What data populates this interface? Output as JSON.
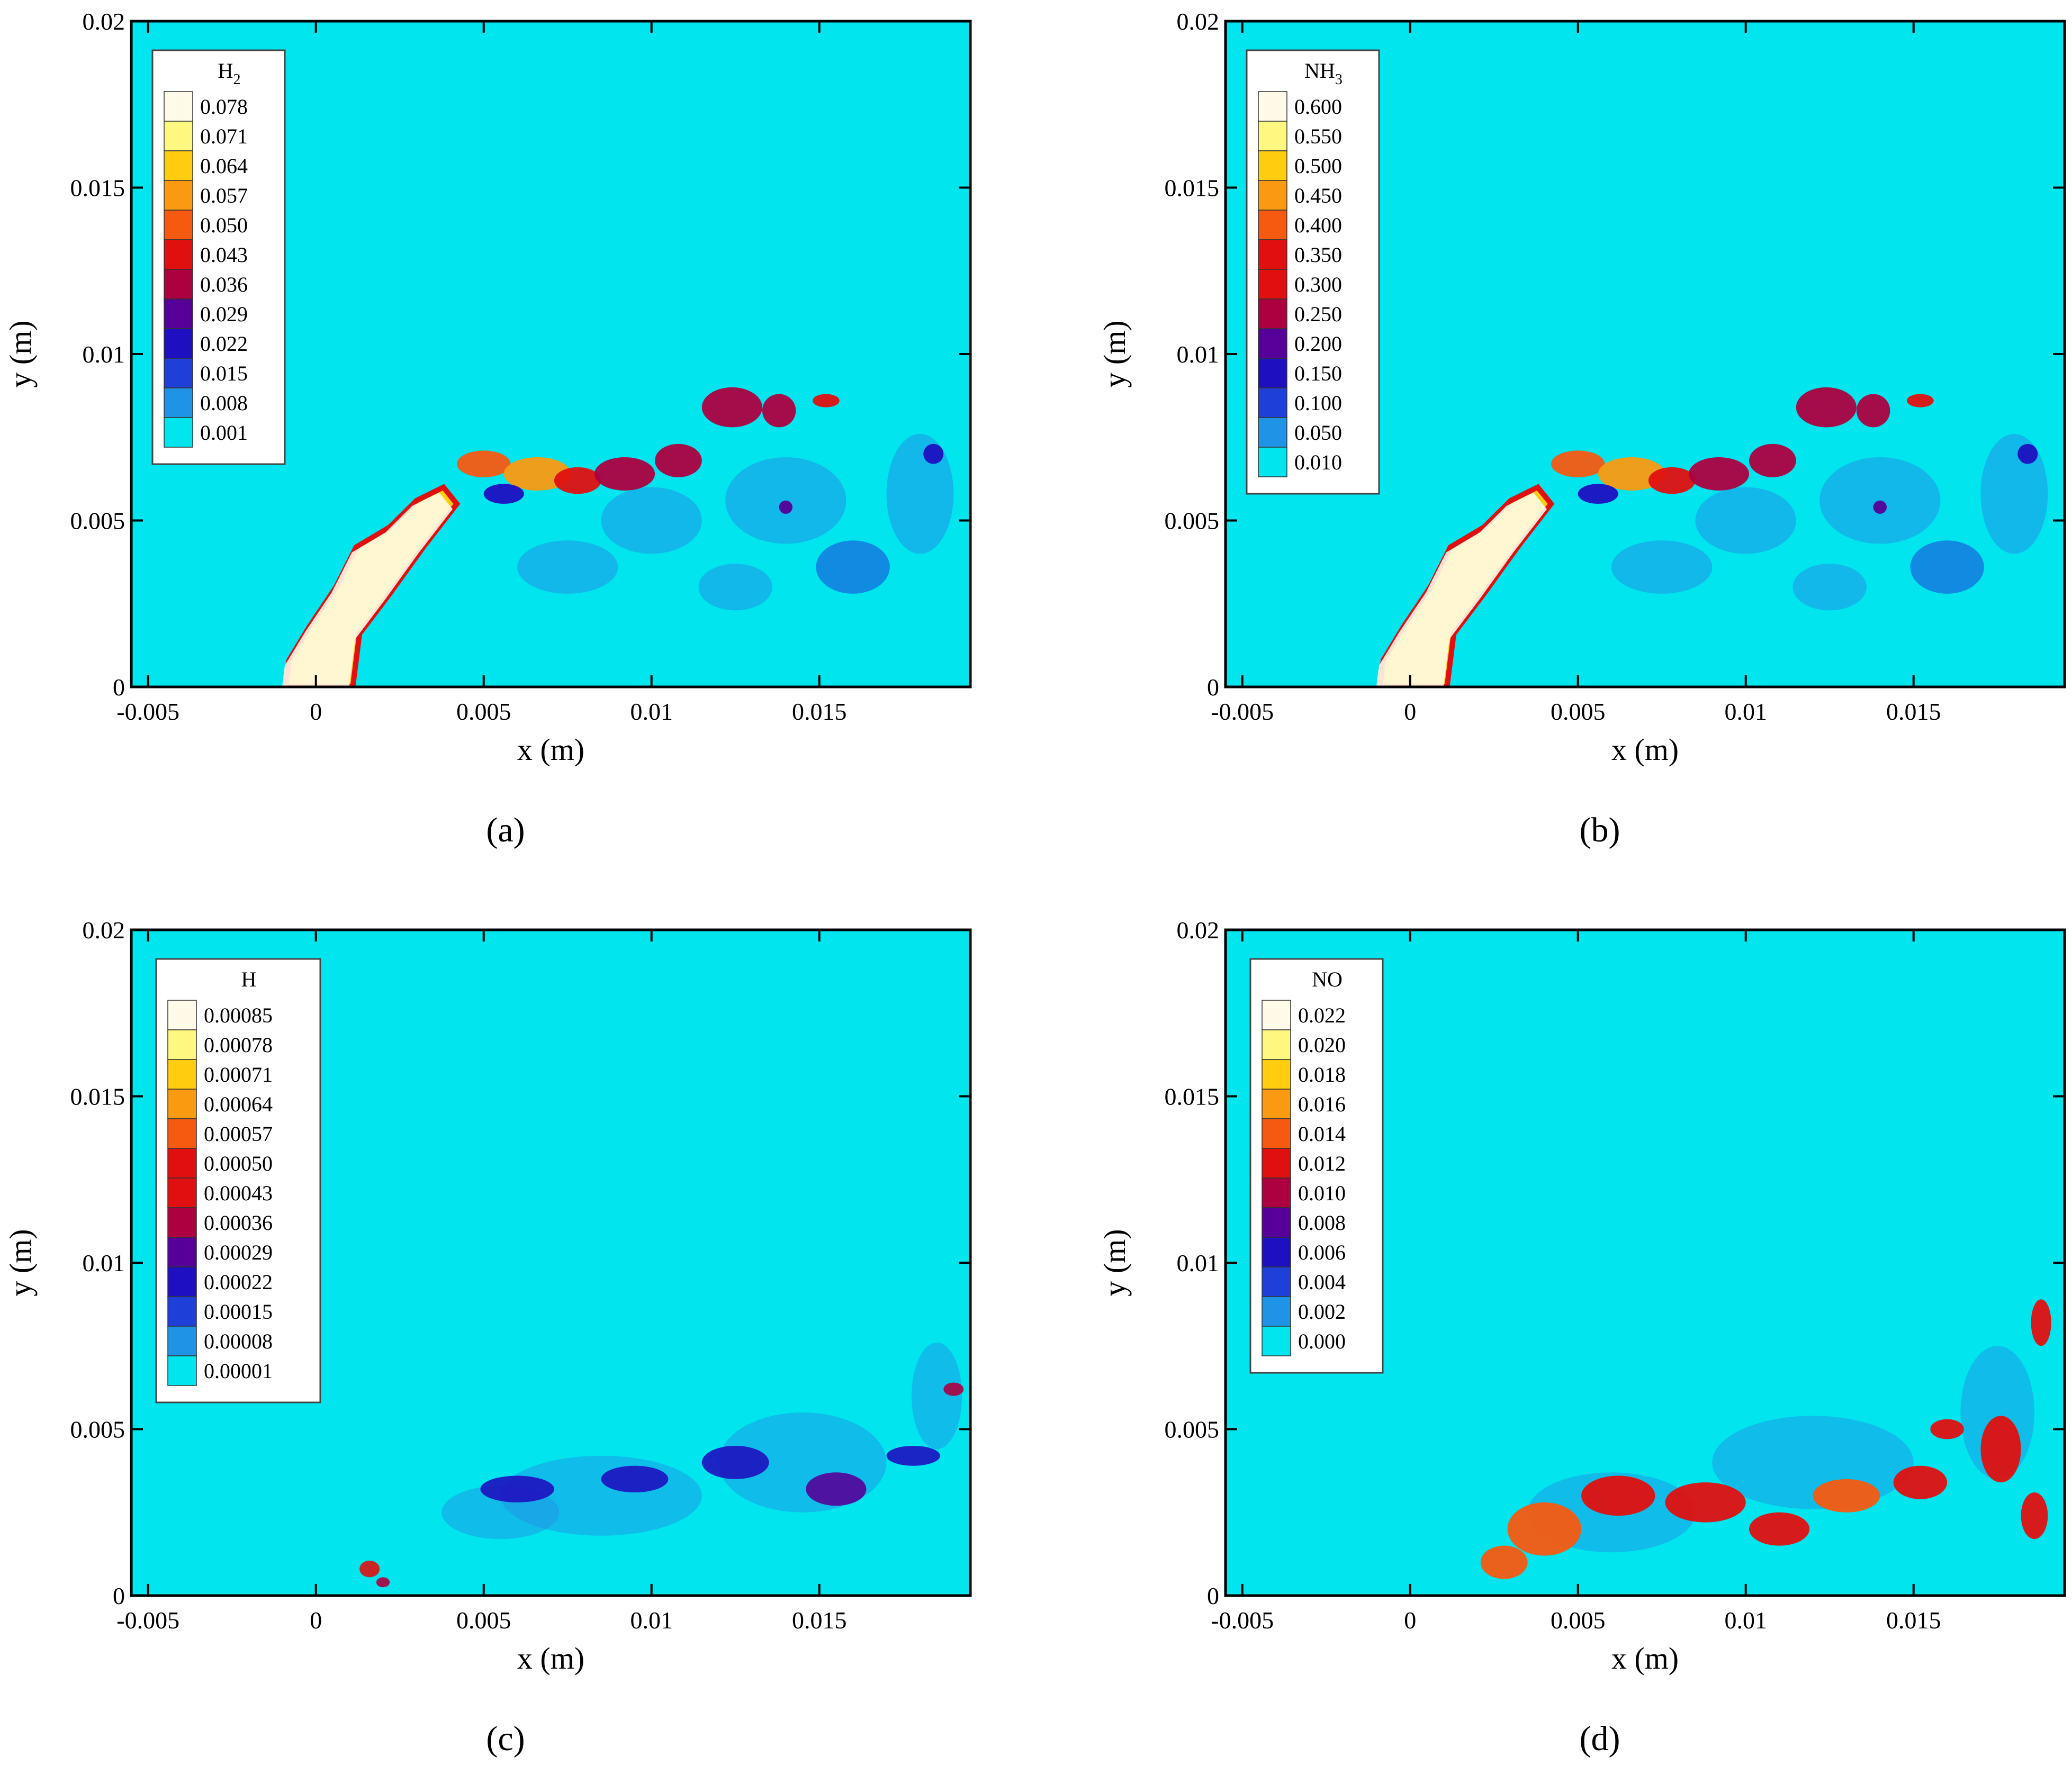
{
  "figure": {
    "colors": {
      "background": "#00e5ee",
      "frame": "#000000",
      "colormap": [
        "#00e5ee",
        "#1f93e6",
        "#1f3fd9",
        "#1e0fc0",
        "#560099",
        "#ad0040",
        "#e01010",
        "#f55a10",
        "#fa9a10",
        "#ffcc10",
        "#fff880",
        "#fffbe8"
      ]
    }
  },
  "chart_data": [
    {
      "type": "heatmap",
      "panel_label": "(a)",
      "variable_name": "H",
      "variable_sub": "2",
      "xlabel": "x (m)",
      "ylabel": "y (m)",
      "xlim": [
        -0.0055,
        0.0195
      ],
      "ylim": [
        0,
        0.02
      ],
      "xticks": [
        -0.005,
        0,
        0.005,
        0.01,
        0.015
      ],
      "xtick_labels": [
        "-0.005",
        "0",
        "0.005",
        "0.01",
        "0.015"
      ],
      "yticks": [
        0,
        0.005,
        0.01,
        0.015,
        0.02
      ],
      "ytick_labels": [
        "0",
        "0.005",
        "0.01",
        "0.015",
        "0.02"
      ],
      "legend_levels": [
        "0.078",
        "0.071",
        "0.064",
        "0.057",
        "0.050",
        "0.043",
        "0.036",
        "0.029",
        "0.022",
        "0.015",
        "0.008",
        "0.001"
      ],
      "field": "jet"
    },
    {
      "type": "heatmap",
      "panel_label": "(b)",
      "variable_name": "NH",
      "variable_sub": "3",
      "xlabel": "x (m)",
      "ylabel": "y (m)",
      "xlim": [
        -0.0055,
        0.0195
      ],
      "ylim": [
        0,
        0.02
      ],
      "xticks": [
        -0.005,
        0,
        0.005,
        0.01,
        0.015
      ],
      "xtick_labels": [
        "-0.005",
        "0",
        "0.005",
        "0.01",
        "0.015"
      ],
      "yticks": [
        0,
        0.005,
        0.01,
        0.015,
        0.02
      ],
      "ytick_labels": [
        "0",
        "0.005",
        "0.01",
        "0.015",
        "0.02"
      ],
      "legend_levels": [
        "0.600",
        "0.550",
        "0.500",
        "0.450",
        "0.400",
        "0.350",
        "0.300",
        "0.250",
        "0.200",
        "0.150",
        "0.100",
        "0.050",
        "0.010"
      ],
      "field": "jet"
    },
    {
      "type": "heatmap",
      "panel_label": "(c)",
      "variable_name": "H",
      "variable_sub": "",
      "xlabel": "x (m)",
      "ylabel": "y (m)",
      "xlim": [
        -0.0055,
        0.0195
      ],
      "ylim": [
        0,
        0.02
      ],
      "xticks": [
        -0.005,
        0,
        0.005,
        0.01,
        0.015
      ],
      "xtick_labels": [
        "-0.005",
        "0",
        "0.005",
        "0.01",
        "0.015"
      ],
      "yticks": [
        0,
        0.005,
        0.01,
        0.015,
        0.02
      ],
      "ytick_labels": [
        "0",
        "0.005",
        "0.01",
        "0.015",
        "0.02"
      ],
      "legend_levels": [
        "0.00085",
        "0.00078",
        "0.00071",
        "0.00064",
        "0.00057",
        "0.00050",
        "0.00043",
        "0.00036",
        "0.00029",
        "0.00022",
        "0.00015",
        "0.00008",
        "0.00001"
      ],
      "field": "radical"
    },
    {
      "type": "heatmap",
      "panel_label": "(d)",
      "variable_name": "NO",
      "variable_sub": "",
      "xlabel": "x (m)",
      "ylabel": "y (m)",
      "xlim": [
        -0.0055,
        0.0195
      ],
      "ylim": [
        0,
        0.02
      ],
      "xticks": [
        -0.005,
        0,
        0.005,
        0.01,
        0.015
      ],
      "xtick_labels": [
        "-0.005",
        "0",
        "0.005",
        "0.01",
        "0.015"
      ],
      "yticks": [
        0,
        0.005,
        0.01,
        0.015,
        0.02
      ],
      "ytick_labels": [
        "0",
        "0.005",
        "0.01",
        "0.015",
        "0.02"
      ],
      "legend_levels": [
        "0.022",
        "0.020",
        "0.018",
        "0.016",
        "0.014",
        "0.012",
        "0.010",
        "0.008",
        "0.006",
        "0.004",
        "0.002",
        "0.000"
      ],
      "field": "product"
    }
  ]
}
